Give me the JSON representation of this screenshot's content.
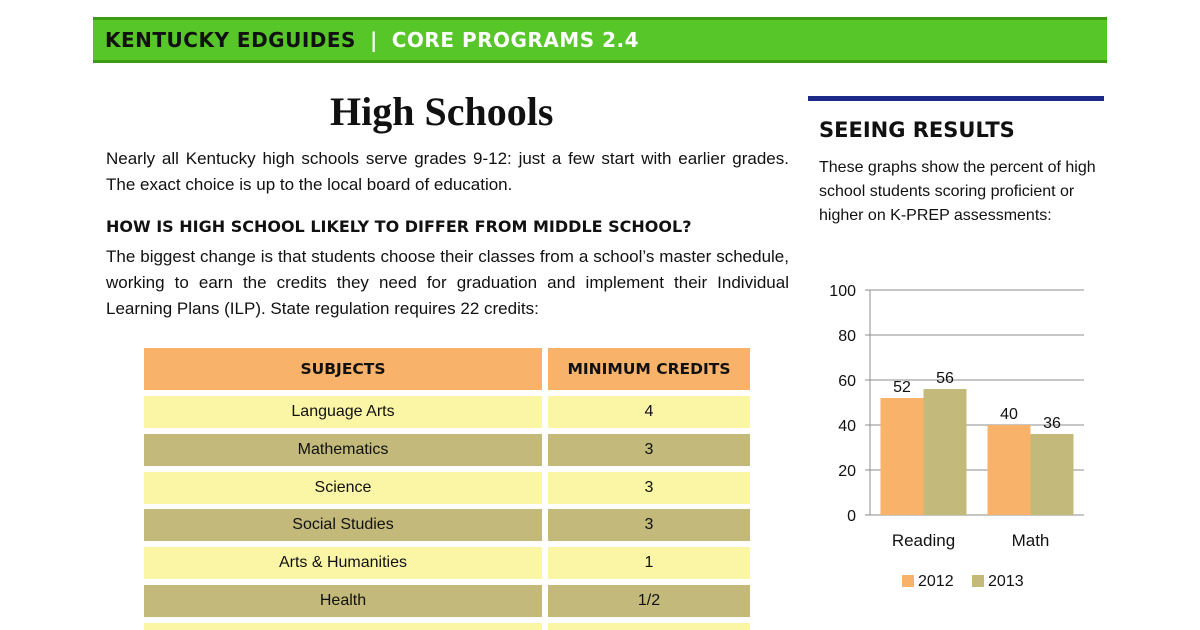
{
  "banner": {
    "org": "KENTUCKY EDGUIDES",
    "separator": "|",
    "program": "CORE PROGRAMS 2.4"
  },
  "article": {
    "title": "High Schools",
    "intro": "Nearly all Kentucky high schools serve grades 9-12: just a few start with earlier grades.  The exact choice is up to the local board of education.",
    "heading": "HOW IS HIGH SCHOOL LIKELY TO DIFFER FROM MIDDLE SCHOOL?",
    "body": "The biggest change is that students choose their classes from a school’s master schedule, working to earn the credits they need for graduation and implement their Individual Learning Plans (ILP).  State regulation requires 22 credits:"
  },
  "credits_table": {
    "headers": [
      "SUBJECTS",
      "MINIMUM CREDITS"
    ],
    "rows": [
      {
        "subject": "Language Arts",
        "credits": "4"
      },
      {
        "subject": "Mathematics",
        "credits": "3"
      },
      {
        "subject": "Science",
        "credits": "3"
      },
      {
        "subject": "Social Studies",
        "credits": "3"
      },
      {
        "subject": "Arts & Humanities",
        "credits": "1"
      },
      {
        "subject": "Health",
        "credits": "1/2"
      }
    ]
  },
  "sidebar": {
    "title": "SEEING RESULTS",
    "description": "These graphs show the percent of high school students scoring proficient or higher on K-PREP assessments:"
  },
  "colors": {
    "banner_green": "#56c628",
    "series_2012": "#f8b26a",
    "series_2013": "#c2b97a",
    "rule_navy": "#1e2a8a"
  },
  "chart_data": {
    "type": "bar",
    "categories": [
      "Reading",
      "Math"
    ],
    "series": [
      {
        "name": "2012",
        "values": [
          52,
          40
        ]
      },
      {
        "name": "2013",
        "values": [
          56,
          36
        ]
      }
    ],
    "ylim": [
      0,
      100
    ],
    "yticks": [
      "0",
      "20",
      "40",
      "60",
      "80",
      "100"
    ],
    "legend_position": "bottom",
    "grid": true,
    "title": "",
    "xlabel": "",
    "ylabel": ""
  }
}
